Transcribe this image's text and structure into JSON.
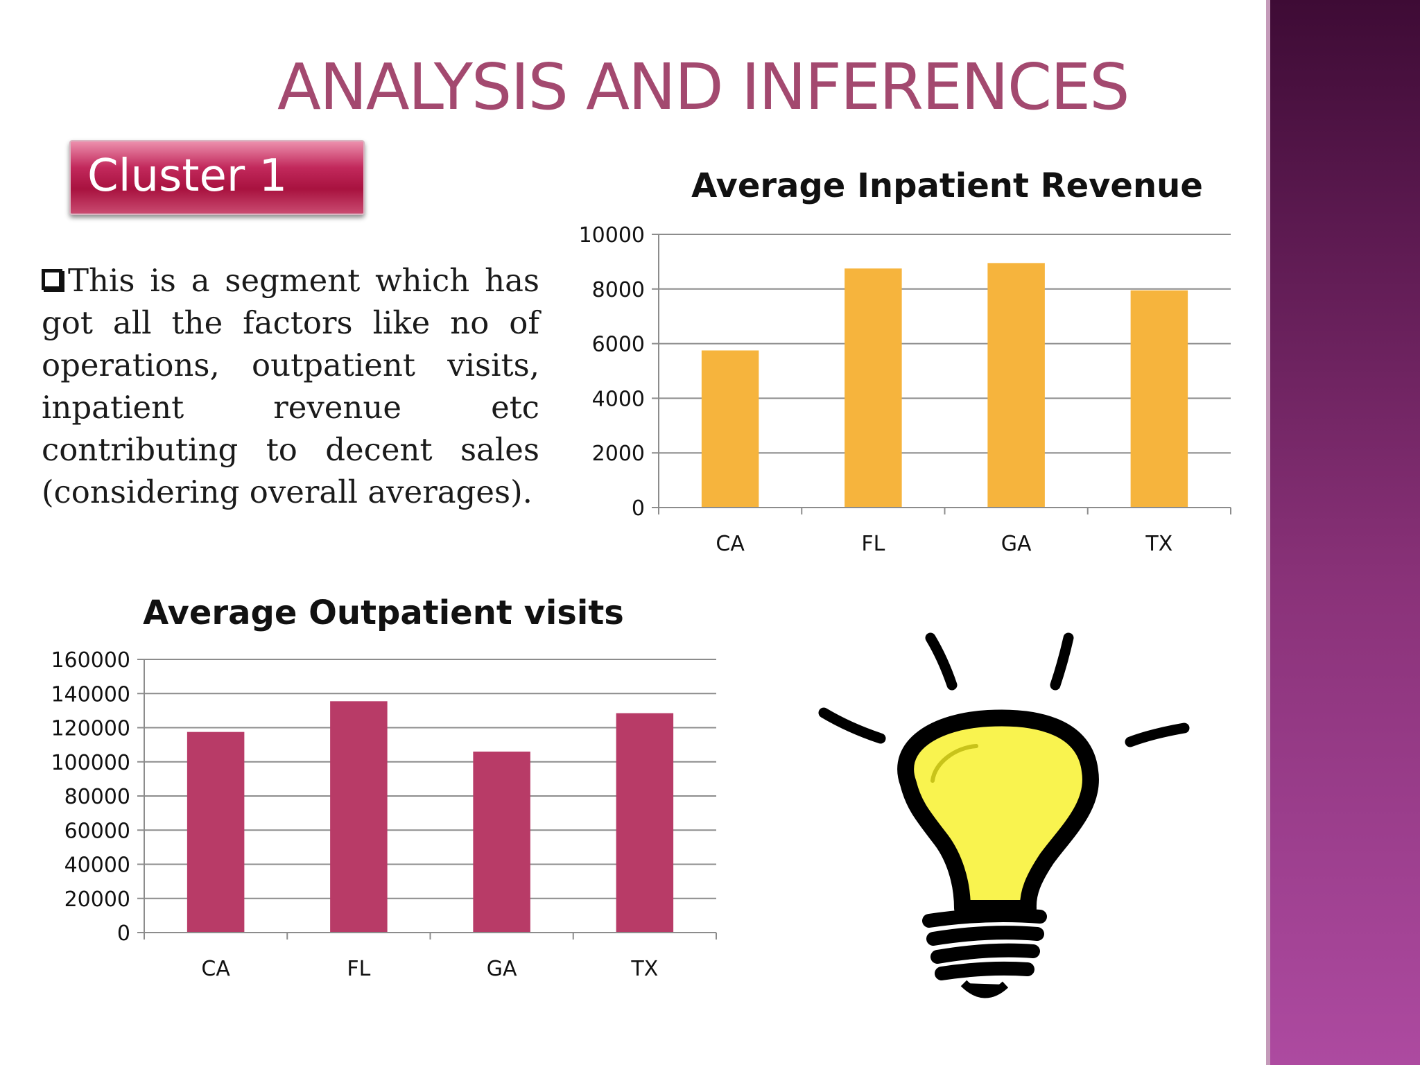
{
  "slide": {
    "title": "ANALYSIS AND INFERENCES",
    "badge": "Cluster 1",
    "body": "This is a segment which has got all the factors like no of operations, outpatient visits, inpatient revenue etc contributing to decent sales (considering overall averages).",
    "bullet_icon": "checkbox-icon",
    "colors": {
      "title": "#a3496f",
      "badge": "#b51a4d",
      "sidebar": "#7a2a6c"
    }
  },
  "chart_data": [
    {
      "type": "bar",
      "title": "Average Inpatient Revenue",
      "categories": [
        "CA",
        "FL",
        "GA",
        "TX"
      ],
      "values": [
        5750,
        8750,
        8950,
        7950
      ],
      "ylim": [
        0,
        10000
      ],
      "yticks": [
        0,
        2000,
        4000,
        6000,
        8000,
        10000
      ],
      "grid": true,
      "color": "#f6b43d"
    },
    {
      "type": "bar",
      "title": "Average Outpatient visits",
      "categories": [
        "CA",
        "FL",
        "GA",
        "TX"
      ],
      "values": [
        117500,
        135500,
        106000,
        128500
      ],
      "ylim": [
        0,
        160000
      ],
      "yticks": [
        0,
        20000,
        40000,
        60000,
        80000,
        100000,
        120000,
        140000,
        160000
      ],
      "grid": true,
      "color": "#b83b67"
    }
  ]
}
